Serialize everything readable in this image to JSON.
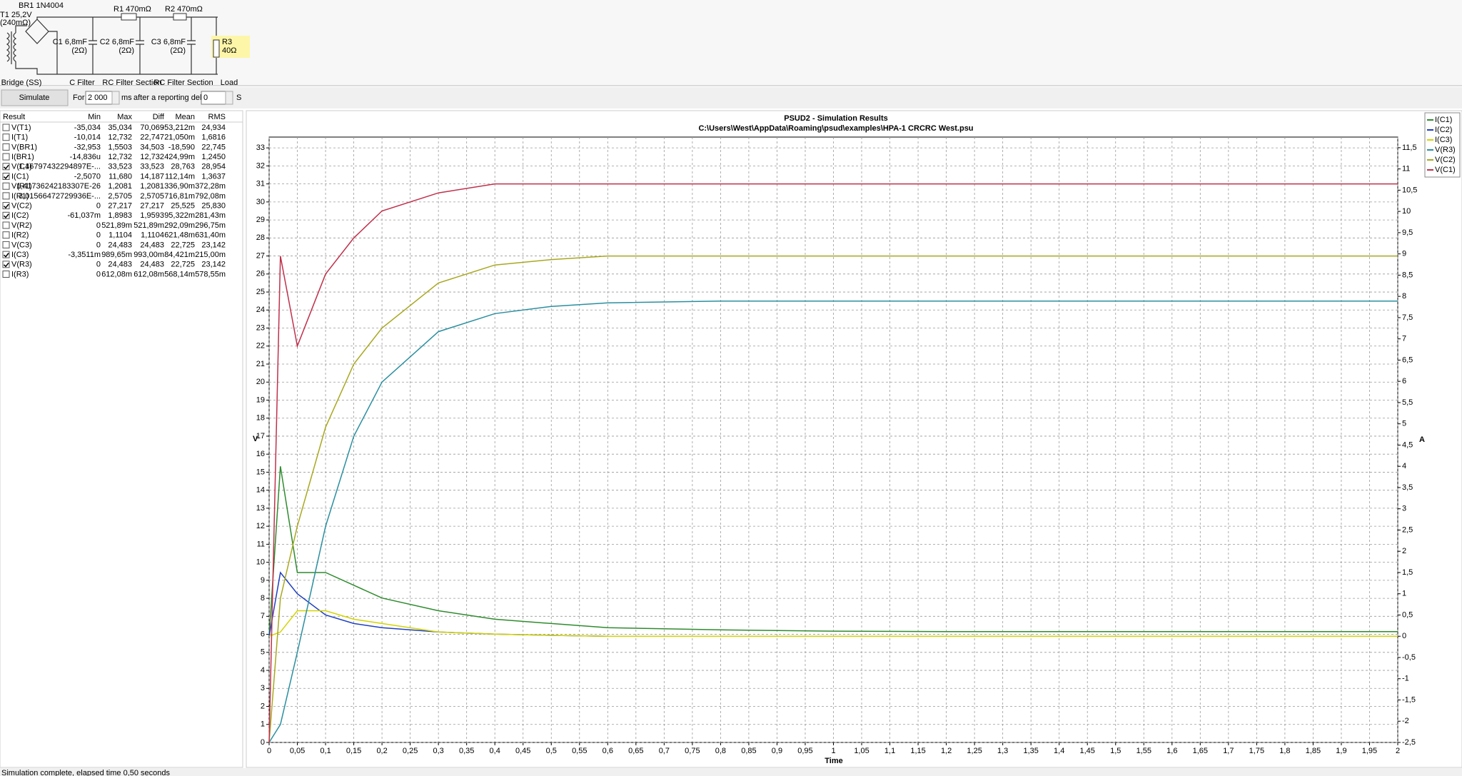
{
  "circuit": {
    "bridge": "BR1 1N4004",
    "transformer": [
      "T1 25,2V",
      "(240mΩ)"
    ],
    "r1": "R1 470mΩ",
    "r2": "R2 470mΩ",
    "c1": [
      "C1 6,8mF",
      "(2Ω)"
    ],
    "c2": [
      "C2 6,8mF",
      "(2Ω)"
    ],
    "c3": [
      "C3 6,8mF",
      "(2Ω)"
    ],
    "r3": [
      "R3",
      "40Ω"
    ],
    "sections": [
      "Bridge (SS)",
      "C Filter",
      "RC Filter Section",
      "RC Filter Section",
      "Load"
    ]
  },
  "toolbar": {
    "button": "Simulate",
    "for": "For",
    "duration": "2 000",
    "unit": "ms",
    "delay_text": "after a reporting delay of",
    "delay": "0",
    "delay_unit": "S"
  },
  "table": {
    "columns": [
      "Result",
      "Min",
      "Max",
      "Diff",
      "Mean",
      "RMS"
    ],
    "rows": [
      {
        "checked": false,
        "cells": [
          "V(T1)",
          "-35,034",
          "35,034",
          "70,069",
          "-53,212m",
          "24,934"
        ]
      },
      {
        "checked": false,
        "cells": [
          "I(T1)",
          "-10,014",
          "12,732",
          "22,747",
          "21,050m",
          "1,6816"
        ]
      },
      {
        "checked": false,
        "cells": [
          "V(BR1)",
          "-32,953",
          "1,5503",
          "34,503",
          "-18,590",
          "22,745"
        ]
      },
      {
        "checked": false,
        "cells": [
          "I(BR1)",
          "-14,836u",
          "12,732",
          "12,732",
          "424,99m",
          "1,2450"
        ]
      },
      {
        "checked": true,
        "cells": [
          "V(C1)",
          "1,46797432294897E-...",
          "33,523",
          "33,523",
          "28,763",
          "28,954"
        ]
      },
      {
        "checked": true,
        "cells": [
          "I(C1)",
          "-2,5070",
          "11,680",
          "14,187",
          "112,14m",
          "1,3637"
        ]
      },
      {
        "checked": false,
        "cells": [
          "V(R1)",
          "1,41736242183307E-26",
          "1,2081",
          "1,2081",
          "336,90m",
          "372,28m"
        ]
      },
      {
        "checked": false,
        "cells": [
          "I(R1)",
          "3,01566472729936E-...",
          "2,5705",
          "2,5705",
          "716,81m",
          "792,08m"
        ]
      },
      {
        "checked": true,
        "cells": [
          "V(C2)",
          "0",
          "27,217",
          "27,217",
          "25,525",
          "25,830"
        ]
      },
      {
        "checked": true,
        "cells": [
          "I(C2)",
          "-61,037m",
          "1,8983",
          "1,9593",
          "95,322m",
          "281,43m"
        ]
      },
      {
        "checked": false,
        "cells": [
          "V(R2)",
          "0",
          "521,89m",
          "521,89m",
          "292,09m",
          "296,75m"
        ]
      },
      {
        "checked": false,
        "cells": [
          "I(R2)",
          "0",
          "1,1104",
          "1,1104",
          "621,48m",
          "631,40m"
        ]
      },
      {
        "checked": false,
        "cells": [
          "V(C3)",
          "0",
          "24,483",
          "24,483",
          "22,725",
          "23,142"
        ]
      },
      {
        "checked": true,
        "cells": [
          "I(C3)",
          "-3,3511m",
          "989,65m",
          "993,00m",
          "84,421m",
          "215,00m"
        ]
      },
      {
        "checked": true,
        "cells": [
          "V(R3)",
          "0",
          "24,483",
          "24,483",
          "22,725",
          "23,142"
        ]
      },
      {
        "checked": false,
        "cells": [
          "I(R3)",
          "0",
          "612,08m",
          "612,08m",
          "568,14m",
          "578,55m"
        ]
      }
    ]
  },
  "chart_data": {
    "type": "line",
    "title": "PSUD2 - Simulation Results",
    "subtitle": "C:\\Users\\West\\AppData\\Roaming\\psud\\examples\\HPA-1 CRCRC West.psu",
    "x_label": "Time",
    "y_label": "V",
    "y2_label": "A",
    "grid": true,
    "legend": "right",
    "x": [
      0,
      0.02,
      0.05,
      0.1,
      0.15,
      0.2,
      0.3,
      0.4,
      0.5,
      0.6,
      0.8,
      1,
      1.2,
      1.4,
      1.6,
      1.8,
      2
    ],
    "xlim": [
      0,
      2
    ],
    "ylim": [
      0,
      33.6
    ],
    "y2lim": [
      -2.5,
      11.75
    ],
    "xticks": [
      0,
      {
        "value": 0.05,
        "label": "0,05"
      },
      {
        "value": 0.1,
        "label": "0,1"
      },
      {
        "value": 0.15,
        "label": "0,15"
      },
      {
        "value": 0.2,
        "label": "0,2"
      },
      {
        "value": 0.25,
        "label": "0,25"
      },
      {
        "value": 0.3,
        "label": "0,3"
      },
      {
        "value": 0.35,
        "label": "0,35"
      },
      {
        "value": 0.4,
        "label": "0,4"
      },
      {
        "value": 0.45,
        "label": "0,45"
      },
      {
        "value": 0.5,
        "label": "0,5"
      },
      {
        "value": 0.55,
        "label": "0,55"
      },
      {
        "value": 0.6,
        "label": "0,6"
      },
      {
        "value": 0.65,
        "label": "0,65"
      },
      {
        "value": 0.7,
        "label": "0,7"
      },
      {
        "value": 0.75,
        "label": "0,75"
      },
      {
        "value": 0.8,
        "label": "0,8"
      },
      {
        "value": 0.85,
        "label": "0,85"
      },
      {
        "value": 0.9,
        "label": "0,9"
      },
      {
        "value": 0.95,
        "label": "0,95"
      },
      1,
      {
        "value": 1.05,
        "label": "1,05"
      },
      {
        "value": 1.1,
        "label": "1,1"
      },
      {
        "value": 1.15,
        "label": "1,15"
      },
      {
        "value": 1.2,
        "label": "1,2"
      },
      {
        "value": 1.25,
        "label": "1,25"
      },
      {
        "value": 1.3,
        "label": "1,3"
      },
      {
        "value": 1.35,
        "label": "1,35"
      },
      {
        "value": 1.4,
        "label": "1,4"
      },
      {
        "value": 1.45,
        "label": "1,45"
      },
      {
        "value": 1.5,
        "label": "1,5"
      },
      {
        "value": 1.55,
        "label": "1,55"
      },
      {
        "value": 1.6,
        "label": "1,6"
      },
      {
        "value": 1.65,
        "label": "1,65"
      },
      {
        "value": 1.7,
        "label": "1,7"
      },
      {
        "value": 1.75,
        "label": "1,75"
      },
      {
        "value": 1.8,
        "label": "1,8"
      },
      {
        "value": 1.85,
        "label": "1,85"
      },
      {
        "value": 1.9,
        "label": "1,9"
      },
      {
        "value": 1.95,
        "label": "1,95"
      },
      2
    ],
    "yticks": [
      0,
      1,
      2,
      3,
      4,
      5,
      6,
      7,
      8,
      9,
      10,
      11,
      12,
      13,
      14,
      15,
      16,
      17,
      18,
      19,
      20,
      21,
      22,
      23,
      24,
      25,
      26,
      27,
      28,
      29,
      30,
      31,
      32,
      33
    ],
    "y2ticks": [
      {
        "value": -2.5,
        "label": "-2,5"
      },
      -2,
      {
        "value": -1.5,
        "label": "-1,5"
      },
      -1,
      {
        "value": -0.5,
        "label": "-0,5"
      },
      0,
      {
        "value": 0.5,
        "label": "0,5"
      },
      1,
      {
        "value": 1.5,
        "label": "1,5"
      },
      2,
      {
        "value": 2.5,
        "label": "2,5"
      },
      3,
      {
        "value": 3.5,
        "label": "3,5"
      },
      4,
      {
        "value": 4.5,
        "label": "4,5"
      },
      5,
      {
        "value": 5.5,
        "label": "5,5"
      },
      6,
      {
        "value": 6.5,
        "label": "6,5"
      },
      7,
      {
        "value": 7.5,
        "label": "7,5"
      },
      8,
      {
        "value": 8.5,
        "label": "8,5"
      },
      9,
      {
        "value": 9.5,
        "label": "9,5"
      },
      10,
      {
        "value": 10.5,
        "label": "10,5"
      },
      11,
      {
        "value": 11.5,
        "label": "11,5"
      }
    ],
    "series": [
      {
        "name": "I(C1)",
        "color": "#2e8b2e",
        "axis": "y2",
        "values": [
          0,
          4,
          1.5,
          1.5,
          1.2,
          0.9,
          0.6,
          0.4,
          0.3,
          0.2,
          0.15,
          0.12,
          0.11,
          0.11,
          0.11,
          0.11,
          0.11
        ]
      },
      {
        "name": "I(C2)",
        "color": "#1f3fbf",
        "axis": "y2",
        "values": [
          0,
          1.5,
          1,
          0.5,
          0.3,
          0.2,
          0.1,
          0.05,
          0.02,
          0,
          0,
          0,
          0,
          0,
          0,
          0,
          0
        ]
      },
      {
        "name": "I(C3)",
        "color": "#d4d400",
        "axis": "y2",
        "values": [
          0,
          0.1,
          0.6,
          0.6,
          0.4,
          0.3,
          0.1,
          0.05,
          0.02,
          0,
          0,
          0,
          0,
          0,
          0,
          0,
          0
        ]
      },
      {
        "name": "V(R3)",
        "color": "#2a8fa0",
        "values": [
          0,
          1,
          5,
          12,
          17,
          20,
          22.8,
          23.8,
          24.2,
          24.4,
          24.5,
          24.5,
          24.5,
          24.5,
          24.5,
          24.5,
          24.5
        ]
      },
      {
        "name": "V(C2)",
        "color": "#a8a820",
        "values": [
          0,
          8,
          12,
          17.5,
          21,
          23,
          25.5,
          26.5,
          26.8,
          27,
          27,
          27,
          27,
          27,
          27,
          27,
          27
        ]
      },
      {
        "name": "V(C1)",
        "color": "#c0304a",
        "values": [
          0,
          27,
          22,
          26,
          28,
          29.5,
          30.5,
          31,
          31,
          31,
          31,
          31,
          31,
          31,
          31,
          31,
          31
        ]
      }
    ]
  },
  "status": "Simulation complete, elapsed time 0,50 seconds"
}
